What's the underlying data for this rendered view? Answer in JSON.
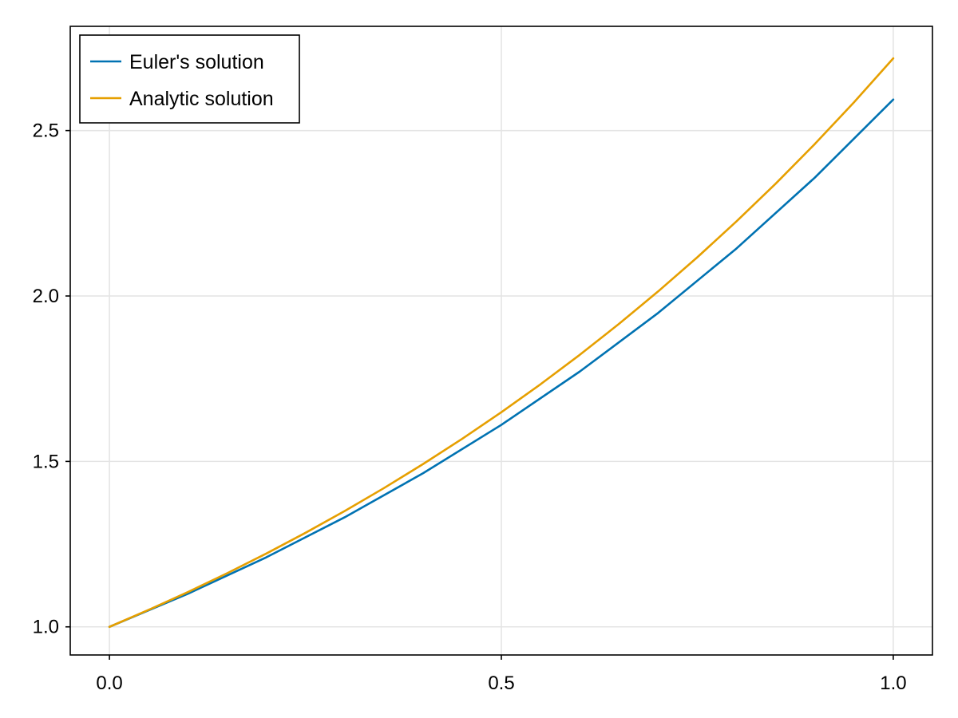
{
  "chart_data": {
    "type": "line",
    "title": "",
    "xlabel": "",
    "ylabel": "",
    "xlim": [
      -0.05,
      1.05
    ],
    "ylim": [
      0.915,
      2.815
    ],
    "xticks": [
      0.0,
      0.5,
      1.0
    ],
    "xtick_labels": [
      "0.0",
      "0.5",
      "1.0"
    ],
    "yticks": [
      1.0,
      1.5,
      2.0,
      2.5
    ],
    "ytick_labels": [
      "1.0",
      "1.5",
      "2.0",
      "2.5"
    ],
    "grid": true,
    "legend_position": "top-left",
    "series": [
      {
        "name": "Euler's solution",
        "color": "#0072b2",
        "x": [
          0.0,
          0.1,
          0.2,
          0.3,
          0.4,
          0.5,
          0.6,
          0.7,
          0.8,
          0.9,
          1.0
        ],
        "y": [
          1.0,
          1.1,
          1.21,
          1.331,
          1.4641,
          1.61051,
          1.771561,
          1.948717,
          2.143589,
          2.357948,
          2.593742
        ]
      },
      {
        "name": "Analytic solution",
        "color": "#e69f00",
        "x": [
          0.0,
          0.05,
          0.1,
          0.15,
          0.2,
          0.25,
          0.3,
          0.35,
          0.4,
          0.45,
          0.5,
          0.55,
          0.6,
          0.65,
          0.7,
          0.75,
          0.8,
          0.85,
          0.9,
          0.95,
          1.0
        ],
        "y": [
          1.0,
          1.051271,
          1.105171,
          1.161834,
          1.221403,
          1.284025,
          1.349859,
          1.419068,
          1.491825,
          1.568312,
          1.648721,
          1.733253,
          1.822119,
          1.915541,
          2.013753,
          2.117,
          2.225541,
          2.339647,
          2.459603,
          2.58571,
          2.718282
        ]
      }
    ]
  }
}
